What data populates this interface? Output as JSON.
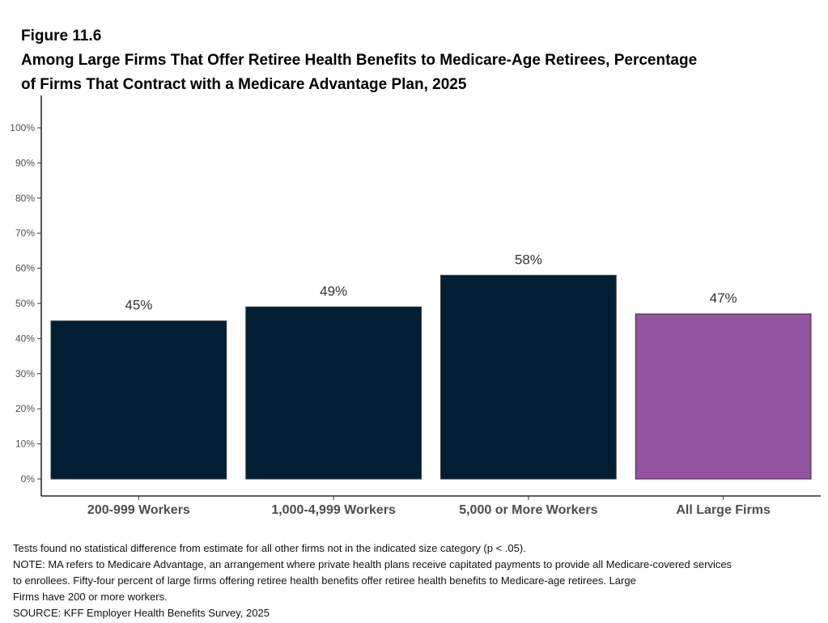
{
  "figure_label": "Figure 11.6",
  "title_lines": [
    "Among Large Firms That Offer Retiree Health Benefits to Medicare-Age Retirees, Percentage",
    "of Firms That Contract with a Medicare Advantage Plan, 2025"
  ],
  "chart_data": {
    "type": "bar",
    "categories": [
      "200-999 Workers",
      "1,000-4,999 Workers",
      "5,000 or More Workers",
      "All Large Firms"
    ],
    "values": [
      45,
      49,
      58,
      47
    ],
    "value_labels": [
      "45%",
      "49%",
      "58%",
      "47%"
    ],
    "ylim": [
      0,
      100
    ],
    "yticks": [
      0,
      10,
      20,
      30,
      40,
      50,
      60,
      70,
      80,
      90,
      100
    ],
    "ytick_labels": [
      "0%",
      "10%",
      "20%",
      "30%",
      "40%",
      "50%",
      "60%",
      "70%",
      "80%",
      "90%",
      "100%"
    ],
    "bar_colors": [
      "#001f35",
      "#001f35",
      "#001f35",
      "#93539e"
    ],
    "xlabel": "",
    "ylabel": "",
    "grid": false,
    "legend": "none"
  },
  "notes": [
    "Tests found no statistical difference from estimate for all other firms not in the indicated size category (p < .05).",
    "NOTE: MA refers to Medicare Advantage, an arrangement where private health plans receive capitated payments to provide all Medicare-covered services",
    "to enrollees.  Fifty-four percent of large firms offering retiree health benefits offer retiree health benefits to Medicare-age retirees.  Large",
    "Firms have 200 or more workers.",
    "SOURCE: KFF Employer Health Benefits Survey, 2025"
  ]
}
